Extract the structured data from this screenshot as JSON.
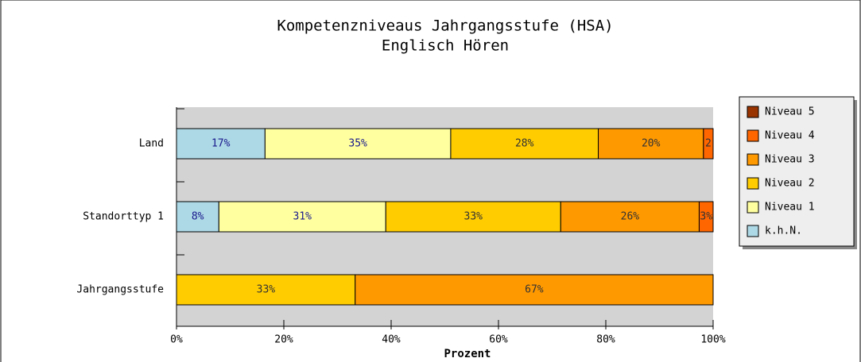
{
  "chart_data": {
    "type": "stacked-barh",
    "title": "Kompetenzniveaus Jahrgangsstufe (HSA)",
    "subtitle": "Englisch Hören",
    "x_label": "Prozent",
    "categories": [
      "Land",
      "Standorttyp 1",
      "Jahrgangsstufe"
    ],
    "series": [
      {
        "name": "k.h.N.",
        "color": "#add8e6",
        "values": [
          16.5,
          7.9,
          null
        ],
        "value_labels": [
          "17%",
          "8%",
          null
        ]
      },
      {
        "name": "Niveau 1",
        "color": "#ffffa0",
        "values": [
          34.6,
          31.1,
          null
        ],
        "value_labels": [
          "35%",
          "31%",
          null
        ]
      },
      {
        "name": "Niveau 2",
        "color": "#ffcc00",
        "values": [
          27.5,
          32.6,
          33.3
        ],
        "value_labels": [
          "28%",
          "33%",
          "33%"
        ]
      },
      {
        "name": "Niveau 3",
        "color": "#ff9900",
        "values": [
          19.6,
          25.8,
          66.7
        ],
        "value_labels": [
          "20%",
          "26%",
          "67%"
        ]
      },
      {
        "name": "Niveau 4",
        "color": "#ff6600",
        "values": [
          1.8,
          2.6,
          null
        ],
        "value_labels": [
          "2",
          "3%",
          null
        ]
      },
      {
        "name": "Niveau 5",
        "color": "#993300",
        "values": [
          null,
          null,
          null
        ]
      }
    ],
    "xlim": [
      0,
      100
    ],
    "xticks": [
      {
        "value": 0,
        "label": "0%"
      },
      {
        "value": 20,
        "label": "20%"
      },
      {
        "value": 40,
        "label": "40%"
      },
      {
        "value": 60,
        "label": "60%"
      },
      {
        "value": 80,
        "label": "80%"
      },
      {
        "value": 100,
        "label": "100%"
      }
    ],
    "legend": "right"
  }
}
